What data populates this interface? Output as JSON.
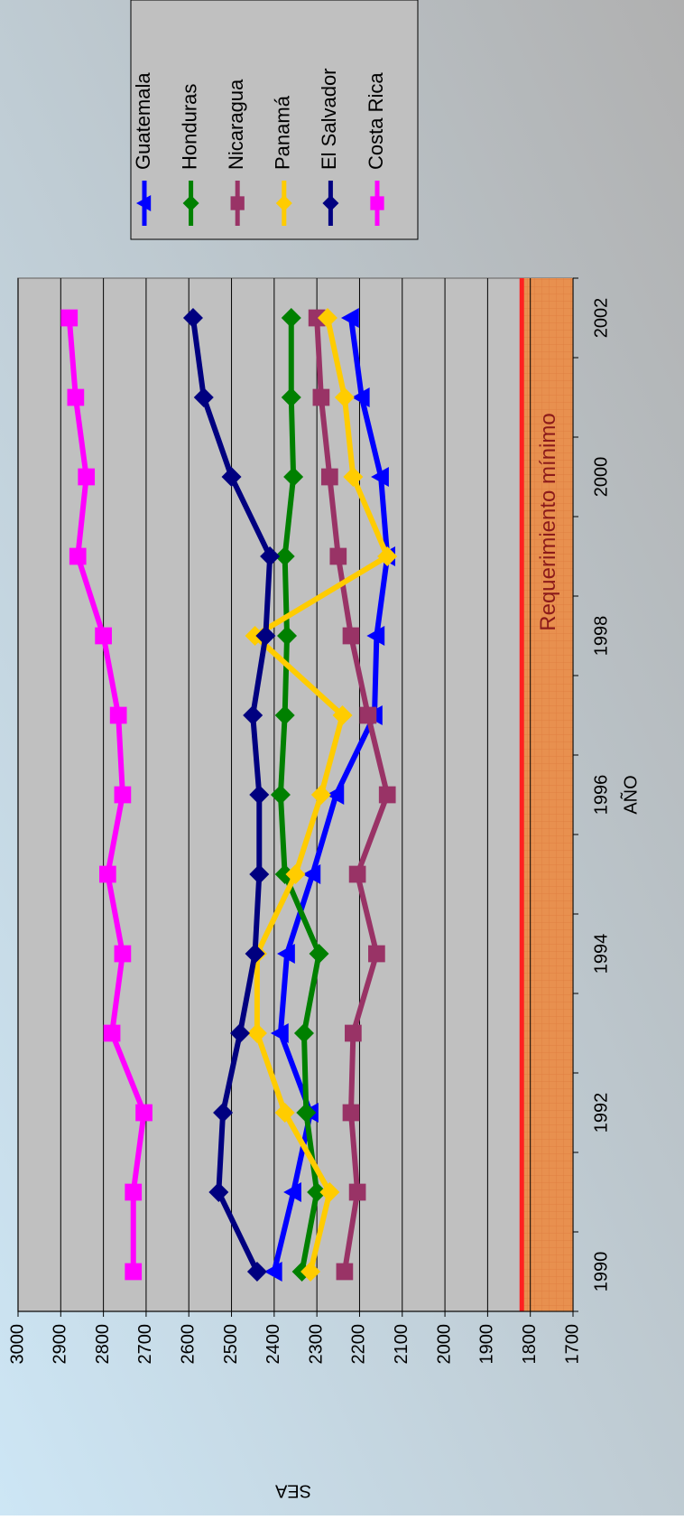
{
  "chart_data": {
    "type": "line",
    "x_label": "AÑO",
    "y_label": "SEA",
    "categories": [
      "1990",
      null,
      "1992",
      null,
      "1994",
      null,
      "1996",
      null,
      "1998",
      null,
      "2000",
      null,
      "2002"
    ],
    "ylim": [
      1700,
      3000
    ],
    "yticks": [
      1700,
      1800,
      1900,
      2000,
      2100,
      2200,
      2300,
      2400,
      2500,
      2600,
      2700,
      2800,
      2900,
      3000
    ],
    "grid": true,
    "threshold": {
      "label": "Requerimiento mínimo",
      "value": 1820,
      "color": "#ff2020",
      "fill": "#e8904f"
    },
    "series": [
      {
        "name": "Guatemala",
        "color": "#0000ff",
        "marker": "triangle",
        "values": [
          2400,
          2355,
          2315,
          2385,
          2370,
          2310,
          2255,
          2165,
          2160,
          2135,
          2150,
          2195,
          2220
        ]
      },
      {
        "name": "Honduras",
        "color": "#008000",
        "marker": "diamond",
        "values": [
          2335,
          2300,
          2325,
          2330,
          2295,
          2375,
          2385,
          2375,
          2370,
          2375,
          2355,
          2360,
          2360
        ]
      },
      {
        "name": "Nicaragua",
        "color": "#993366",
        "marker": "square",
        "values": [
          2235,
          2205,
          2220,
          2215,
          2160,
          2205,
          2135,
          2180,
          2220,
          2250,
          2270,
          2290,
          2300
        ]
      },
      {
        "name": "Panamá",
        "color": "#ffcc00",
        "marker": "diamond",
        "values": [
          2315,
          2270,
          2375,
          2440,
          2440,
          2350,
          2290,
          2240,
          2445,
          2135,
          2215,
          2235,
          2275
        ]
      },
      {
        "name": "El Salvador",
        "color": "#000080",
        "marker": "diamond",
        "values": [
          2440,
          2530,
          2520,
          2480,
          2445,
          2435,
          2435,
          2450,
          2420,
          2410,
          2500,
          2565,
          2590
        ]
      },
      {
        "name": "Costa Rica",
        "color": "#ff00ff",
        "marker": "square",
        "values": [
          2730,
          2730,
          2705,
          2780,
          2755,
          2790,
          2755,
          2765,
          2800,
          2860,
          2840,
          2865,
          2880
        ]
      }
    ]
  }
}
